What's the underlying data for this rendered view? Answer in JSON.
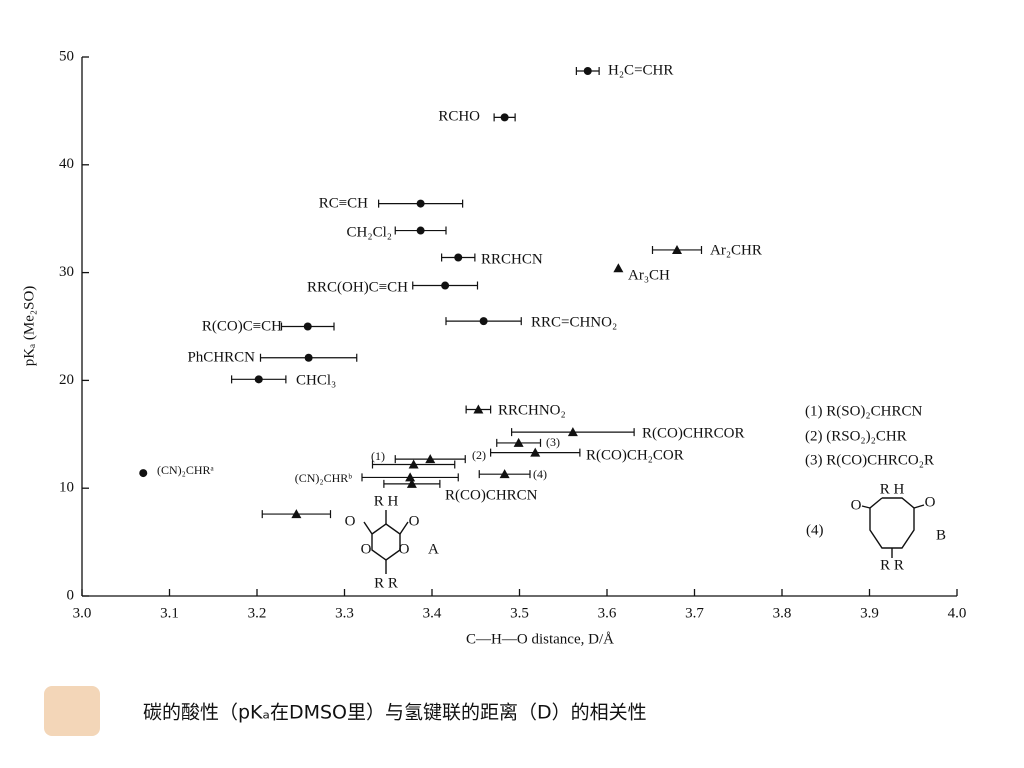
{
  "chart_data": {
    "type": "scatter",
    "xlabel": "C—H—O distance, D/Å",
    "ylabel": "pKₐ (Me₂SO)",
    "caption": "碳的酸性（pKₐ在DMSO里）与氢键联的距离（D）的相关性",
    "xlim": [
      3.0,
      4.0
    ],
    "xticks": [
      {
        "value": 3.0,
        "label": "3.0"
      },
      3.1,
      3.2,
      3.3,
      3.4,
      3.5,
      3.6,
      3.7,
      3.8,
      3.9,
      {
        "value": 4.0,
        "label": "4.0"
      }
    ],
    "ylim": [
      0,
      50
    ],
    "yticks": [
      0,
      10,
      20,
      30,
      40,
      50
    ],
    "color": "#111111",
    "points": [
      {
        "label": "H₂C=CHR",
        "x": 3.578,
        "y": 48.7,
        "xerr": 0.013,
        "marker": "circle"
      },
      {
        "label": "RCHO",
        "x": 3.483,
        "y": 44.4,
        "xerr": 0.012,
        "marker": "circle"
      },
      {
        "label": "RC≡CH",
        "x": 3.387,
        "y": 36.4,
        "xerr": 0.048,
        "marker": "circle"
      },
      {
        "label": "CH₂Cl₂",
        "x": 3.387,
        "y": 33.9,
        "xerr": 0.029,
        "marker": "circle"
      },
      {
        "label": "RRCHCN",
        "x": 3.43,
        "y": 31.4,
        "xerr": 0.019,
        "marker": "circle"
      },
      {
        "label": "RRC(OH)C≡CH",
        "x": 3.415,
        "y": 28.8,
        "xerr": 0.037,
        "marker": "circle"
      },
      {
        "label": "RRC=CHNO₂",
        "x": 3.459,
        "y": 25.5,
        "xerr": 0.043,
        "marker": "circle"
      },
      {
        "label": "R(CO)C≡CH",
        "x": 3.258,
        "y": 25.0,
        "xerr": 0.03,
        "marker": "circle"
      },
      {
        "label": "PhCHRCN",
        "x": 3.259,
        "y": 22.1,
        "xerr": 0.055,
        "marker": "circle"
      },
      {
        "label": "CHCl₃",
        "x": 3.202,
        "y": 20.1,
        "xerr": 0.031,
        "marker": "circle"
      },
      {
        "label": "(CN)₂CHRᵃ",
        "x": 3.07,
        "y": 11.4,
        "xerr": null,
        "marker": "circle"
      },
      {
        "label": "Ar₂CHR",
        "x": 3.68,
        "y": 32.1,
        "xerr": 0.028,
        "marker": "triangle"
      },
      {
        "label": "Ar₃CH",
        "x": 3.613,
        "y": 30.4,
        "xerr": null,
        "marker": "triangle"
      },
      {
        "label": "RRCHNO₂",
        "x": 3.453,
        "y": 17.3,
        "xerr": 0.014,
        "marker": "triangle"
      },
      {
        "label": "R(CO)CHRCOR",
        "x": 3.561,
        "y": 15.2,
        "xerr": 0.07,
        "marker": "triangle"
      },
      {
        "label": "(3)",
        "x": 3.499,
        "y": 14.2,
        "xerr": 0.025,
        "marker": "triangle"
      },
      {
        "label": "R(CO)CH₂COR",
        "x": 3.518,
        "y": 13.3,
        "xerr": 0.051,
        "marker": "triangle"
      },
      {
        "label": "(2)",
        "x": 3.398,
        "y": 12.7,
        "xerr": 0.04,
        "marker": "triangle"
      },
      {
        "label": "(1)",
        "x": 3.379,
        "y": 12.2,
        "xerr": 0.047,
        "marker": "triangle"
      },
      {
        "label": "(CN)₂CHRᵇ",
        "x": 3.375,
        "y": 11.0,
        "xerr": 0.055,
        "marker": "triangle"
      },
      {
        "label": "R(CO)CHRCN",
        "x": 3.377,
        "y": 10.4,
        "xerr": 0.032,
        "marker": "triangle"
      },
      {
        "label": "(4)",
        "x": 3.483,
        "y": 11.3,
        "xerr": 0.029,
        "marker": "triangle"
      },
      {
        "label": null,
        "x": 3.245,
        "y": 7.6,
        "xerr": 0.039,
        "marker": "triangle"
      }
    ],
    "legend_notes": [
      "(1) R(SO)₂CHRCN",
      "(2) (RSO₂)₂CHR",
      "(3) R(CO)CHRCO₂R",
      "(4)"
    ],
    "structure_a": [
      "R H",
      "O",
      "O",
      "O",
      "O",
      "R R",
      "A"
    ],
    "structure_b": [
      "R H",
      "O",
      "O",
      "R R",
      "B"
    ]
  }
}
